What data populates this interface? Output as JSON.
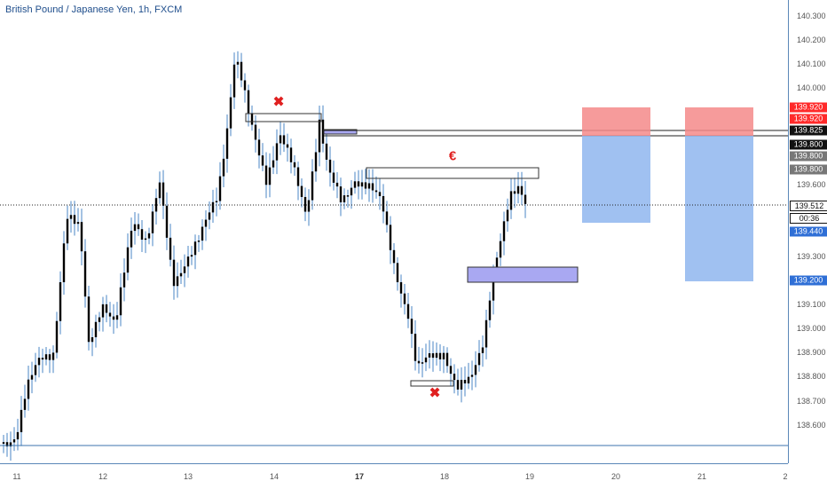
{
  "title": "British Pound / Japanese Yen, 1h, FXCM",
  "price_ticks": [
    "140.300",
    "140.200",
    "140.100",
    "140.000",
    "139.600",
    "139.300",
    "139.100",
    "139.000",
    "138.900",
    "138.800",
    "138.700",
    "138.600"
  ],
  "price_tags": {
    "red_top": "139.920",
    "red_bottom": "139.920",
    "black_825": "139.825",
    "black_800": "139.800",
    "gray_top": "139.800",
    "gray_bottom": "139.800",
    "current": "139.512",
    "countdown": "00:36",
    "blue_440": "139.440",
    "blue_200": "139.200"
  },
  "time_ticks": [
    "11",
    "12",
    "13",
    "14",
    "17",
    "18",
    "19",
    "20",
    "21",
    "2"
  ],
  "annotations": {
    "cross_top": "✖",
    "cross_bottom": "✖",
    "euro": "€"
  },
  "colors": {
    "candle": "#000000",
    "wick": "#4a86c5",
    "axis": "#5b87b8",
    "loss_zone": "#f48a8a",
    "profit_zone": "#8fb6ee",
    "demand_zone": "#a9a8f2",
    "red_mark": "#e02020"
  }
}
